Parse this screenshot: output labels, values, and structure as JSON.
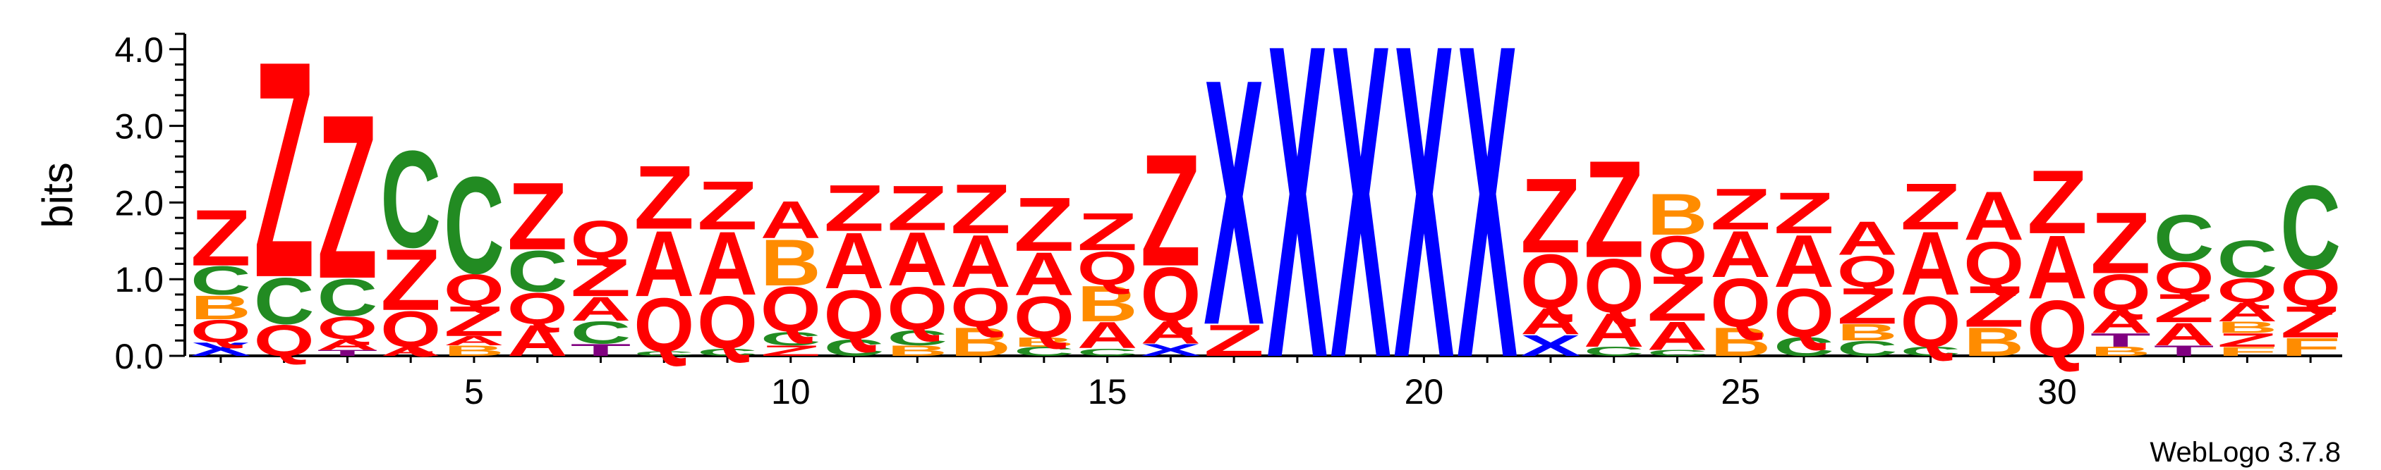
{
  "chart_data": {
    "type": "sequence-logo",
    "ylabel": "bits",
    "xlabel": "",
    "ylim": [
      0,
      4.2
    ],
    "yticks": [
      "0.0",
      "1.0",
      "2.0",
      "3.0",
      "4.0"
    ],
    "xtick_labels": [
      "5",
      "10",
      "15",
      "20",
      "25",
      "30"
    ],
    "xtick_positions": [
      5,
      10,
      15,
      20,
      25,
      30
    ],
    "n_positions": 34,
    "credit": "WebLogo 3.7.8",
    "colors": {
      "Z": "#ff0000",
      "Q": "#ff0000",
      "A": "#ff0000",
      "C": "#228b22",
      "B": "#ff8c00",
      "F": "#ff8c00",
      "X": "#0000ff",
      "T": "#800080"
    },
    "positions": [
      {
        "pos": 1,
        "stack": [
          {
            "letter": "X",
            "height": 0.18
          },
          {
            "letter": "Q",
            "height": 0.3
          },
          {
            "letter": "B",
            "height": 0.32
          },
          {
            "letter": "C",
            "height": 0.38
          },
          {
            "letter": "Z",
            "height": 0.75
          }
        ]
      },
      {
        "pos": 2,
        "stack": [
          {
            "letter": "Q",
            "height": 0.42
          },
          {
            "letter": "C",
            "height": 0.62
          },
          {
            "letter": "Z",
            "height": 2.9
          }
        ]
      },
      {
        "pos": 3,
        "stack": [
          {
            "letter": "T",
            "height": 0.08
          },
          {
            "letter": "A",
            "height": 0.14
          },
          {
            "letter": "Q",
            "height": 0.3
          },
          {
            "letter": "C",
            "height": 0.5
          },
          {
            "letter": "Z",
            "height": 2.2
          }
        ]
      },
      {
        "pos": 4,
        "stack": [
          {
            "letter": "A",
            "height": 0.12
          },
          {
            "letter": "Q",
            "height": 0.48
          },
          {
            "letter": "Z",
            "height": 0.82
          },
          {
            "letter": "C",
            "height": 1.3
          }
        ]
      },
      {
        "pos": 5,
        "stack": [
          {
            "letter": "B",
            "height": 0.14
          },
          {
            "letter": "A",
            "height": 0.12
          },
          {
            "letter": "Z",
            "height": 0.4
          },
          {
            "letter": "Q",
            "height": 0.42
          },
          {
            "letter": "C",
            "height": 1.3
          }
        ]
      },
      {
        "pos": 6,
        "stack": [
          {
            "letter": "A",
            "height": 0.42
          },
          {
            "letter": "Q",
            "height": 0.42
          },
          {
            "letter": "C",
            "height": 0.55
          },
          {
            "letter": "Z",
            "height": 0.9
          }
        ]
      },
      {
        "pos": 7,
        "stack": [
          {
            "letter": "T",
            "height": 0.16
          },
          {
            "letter": "C",
            "height": 0.3
          },
          {
            "letter": "A",
            "height": 0.32
          },
          {
            "letter": "Z",
            "height": 0.5
          },
          {
            "letter": "Q",
            "height": 0.5
          }
        ]
      },
      {
        "pos": 8,
        "stack": [
          {
            "letter": "C",
            "height": 0.06
          },
          {
            "letter": "Q",
            "height": 0.72
          },
          {
            "letter": "A",
            "height": 0.88
          },
          {
            "letter": "Z",
            "height": 0.85
          }
        ]
      },
      {
        "pos": 9,
        "stack": [
          {
            "letter": "C",
            "height": 0.1
          },
          {
            "letter": "Q",
            "height": 0.7
          },
          {
            "letter": "A",
            "height": 0.85
          },
          {
            "letter": "Z",
            "height": 0.65
          }
        ]
      },
      {
        "pos": 10,
        "stack": [
          {
            "letter": "Z",
            "height": 0.14
          },
          {
            "letter": "C",
            "height": 0.18
          },
          {
            "letter": "Q",
            "height": 0.6
          },
          {
            "letter": "B",
            "height": 0.62
          },
          {
            "letter": "A",
            "height": 0.5
          }
        ]
      },
      {
        "pos": 11,
        "stack": [
          {
            "letter": "C",
            "height": 0.22
          },
          {
            "letter": "Q",
            "height": 0.66
          },
          {
            "letter": "A",
            "height": 0.75
          },
          {
            "letter": "Z",
            "height": 0.62
          }
        ]
      },
      {
        "pos": 12,
        "stack": [
          {
            "letter": "B",
            "height": 0.14
          },
          {
            "letter": "C",
            "height": 0.2
          },
          {
            "letter": "Q",
            "height": 0.58
          },
          {
            "letter": "A",
            "height": 0.72
          },
          {
            "letter": "Z",
            "height": 0.6
          }
        ]
      },
      {
        "pos": 13,
        "stack": [
          {
            "letter": "B",
            "height": 0.38
          },
          {
            "letter": "Q",
            "height": 0.52
          },
          {
            "letter": "A",
            "height": 0.7
          },
          {
            "letter": "Z",
            "height": 0.66
          }
        ]
      },
      {
        "pos": 14,
        "stack": [
          {
            "letter": "C",
            "height": 0.12
          },
          {
            "letter": "B",
            "height": 0.12
          },
          {
            "letter": "Q",
            "height": 0.55
          },
          {
            "letter": "A",
            "height": 0.58
          },
          {
            "letter": "Z",
            "height": 0.72
          }
        ]
      },
      {
        "pos": 15,
        "stack": [
          {
            "letter": "C",
            "height": 0.1
          },
          {
            "letter": "A",
            "height": 0.35
          },
          {
            "letter": "B",
            "height": 0.48
          },
          {
            "letter": "Q",
            "height": 0.45
          },
          {
            "letter": "Z",
            "height": 0.5
          }
        ]
      },
      {
        "pos": 16,
        "stack": [
          {
            "letter": "X",
            "height": 0.16
          },
          {
            "letter": "A",
            "height": 0.3
          },
          {
            "letter": "Q",
            "height": 0.72
          },
          {
            "letter": "Z",
            "height": 1.5
          }
        ]
      },
      {
        "pos": 17,
        "stack": [
          {
            "letter": "Z",
            "height": 0.42
          },
          {
            "letter": "X",
            "height": 3.3
          }
        ]
      },
      {
        "pos": 18,
        "stack": [
          {
            "letter": "X",
            "height": 4.2
          }
        ]
      },
      {
        "pos": 19,
        "stack": [
          {
            "letter": "X",
            "height": 4.2
          }
        ]
      },
      {
        "pos": 20,
        "stack": [
          {
            "letter": "X",
            "height": 4.2
          }
        ]
      },
      {
        "pos": 21,
        "stack": [
          {
            "letter": "X",
            "height": 4.2
          }
        ]
      },
      {
        "pos": 22,
        "stack": [
          {
            "letter": "X",
            "height": 0.28
          },
          {
            "letter": "A",
            "height": 0.35
          },
          {
            "letter": "Q",
            "height": 0.72
          },
          {
            "letter": "Z",
            "height": 1.0
          }
        ]
      },
      {
        "pos": 23,
        "stack": [
          {
            "letter": "C",
            "height": 0.12
          },
          {
            "letter": "A",
            "height": 0.45
          },
          {
            "letter": "Q",
            "height": 0.72
          },
          {
            "letter": "Z",
            "height": 1.3
          }
        ]
      },
      {
        "pos": 24,
        "stack": [
          {
            "letter": "C",
            "height": 0.08
          },
          {
            "letter": "A",
            "height": 0.38
          },
          {
            "letter": "Z",
            "height": 0.6
          },
          {
            "letter": "Q",
            "height": 0.52
          },
          {
            "letter": "B",
            "height": 0.55
          }
        ]
      },
      {
        "pos": 25,
        "stack": [
          {
            "letter": "B",
            "height": 0.38
          },
          {
            "letter": "Q",
            "height": 0.65
          },
          {
            "letter": "A",
            "height": 0.62
          },
          {
            "letter": "Z",
            "height": 0.55
          }
        ]
      },
      {
        "pos": 26,
        "stack": [
          {
            "letter": "C",
            "height": 0.25
          },
          {
            "letter": "Q",
            "height": 0.65
          },
          {
            "letter": "A",
            "height": 0.7
          },
          {
            "letter": "Z",
            "height": 0.55
          }
        ]
      },
      {
        "pos": 27,
        "stack": [
          {
            "letter": "C",
            "height": 0.2
          },
          {
            "letter": "B",
            "height": 0.22
          },
          {
            "letter": "Z",
            "height": 0.48
          },
          {
            "letter": "Q",
            "height": 0.42
          },
          {
            "letter": "A",
            "height": 0.45
          }
        ]
      },
      {
        "pos": 28,
        "stack": [
          {
            "letter": "C",
            "height": 0.12
          },
          {
            "letter": "Q",
            "height": 0.68
          },
          {
            "letter": "A",
            "height": 0.85
          },
          {
            "letter": "Z",
            "height": 0.62
          }
        ]
      },
      {
        "pos": 29,
        "stack": [
          {
            "letter": "B",
            "height": 0.38
          },
          {
            "letter": "Z",
            "height": 0.55
          },
          {
            "letter": "Q",
            "height": 0.58
          },
          {
            "letter": "A",
            "height": 0.65
          }
        ]
      },
      {
        "pos": 30,
        "stack": [
          {
            "letter": "Q",
            "height": 0.75
          },
          {
            "letter": "A",
            "height": 0.85
          },
          {
            "letter": "Z",
            "height": 0.85
          }
        ]
      },
      {
        "pos": 31,
        "stack": [
          {
            "letter": "B",
            "height": 0.12
          },
          {
            "letter": "T",
            "height": 0.18
          },
          {
            "letter": "A",
            "height": 0.3
          },
          {
            "letter": "Q",
            "height": 0.48
          },
          {
            "letter": "Z",
            "height": 0.82
          }
        ]
      },
      {
        "pos": 32,
        "stack": [
          {
            "letter": "T",
            "height": 0.14
          },
          {
            "letter": "A",
            "height": 0.3
          },
          {
            "letter": "Z",
            "height": 0.38
          },
          {
            "letter": "Q",
            "height": 0.42
          },
          {
            "letter": "C",
            "height": 0.62
          }
        ]
      },
      {
        "pos": 33,
        "stack": [
          {
            "letter": "F",
            "height": 0.12
          },
          {
            "letter": "Z",
            "height": 0.18
          },
          {
            "letter": "B",
            "height": 0.15
          },
          {
            "letter": "A",
            "height": 0.25
          },
          {
            "letter": "Q",
            "height": 0.32
          },
          {
            "letter": "C",
            "height": 0.5
          }
        ]
      },
      {
        "pos": 34,
        "stack": [
          {
            "letter": "F",
            "height": 0.24
          },
          {
            "letter": "Z",
            "height": 0.42
          },
          {
            "letter": "Q",
            "height": 0.48
          },
          {
            "letter": "C",
            "height": 1.12
          }
        ]
      }
    ]
  }
}
